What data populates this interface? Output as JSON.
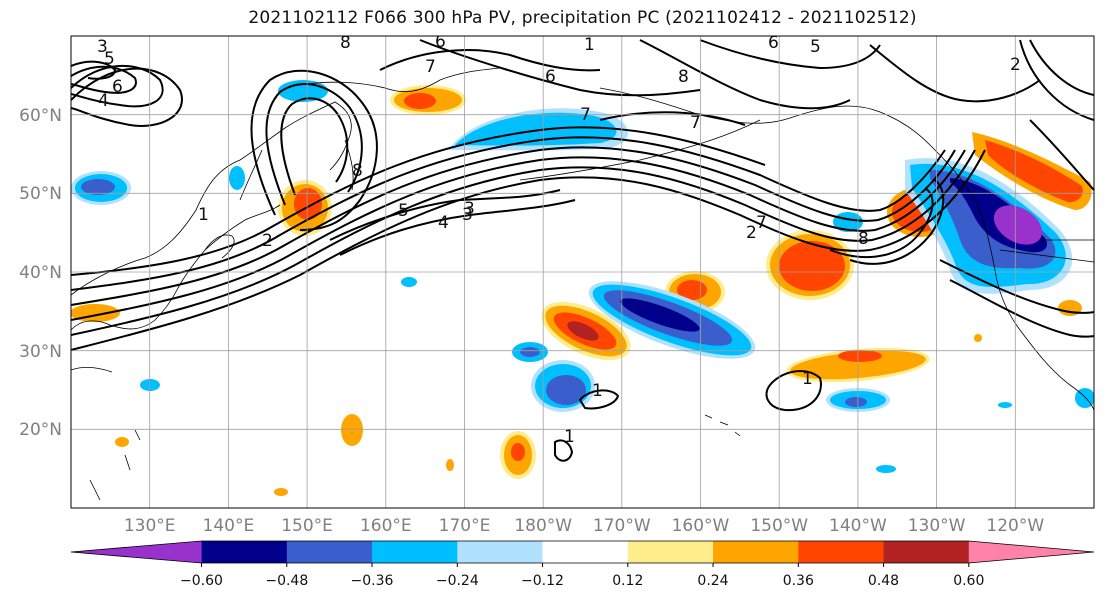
{
  "title": "2021102112 F066 300 hPa PV, precipitation PC (2021102412 - 2021102512)",
  "map": {
    "projection": "PlateCarree",
    "lon_range": [
      120,
      250
    ],
    "lat_range": [
      10,
      70
    ],
    "lat_ticks": [
      "20°N",
      "30°N",
      "40°N",
      "50°N",
      "60°N"
    ],
    "lon_ticks": [
      "130°E",
      "140°E",
      "150°E",
      "160°E",
      "170°E",
      "180°W",
      "170°W",
      "160°W",
      "150°W",
      "140°W",
      "130°W",
      "120°W"
    ],
    "gridlines": true,
    "contour_variable": "300 hPa PV",
    "fill_variable": "precipitation PC",
    "contour_labels": [
      "3",
      "5",
      "6",
      "4",
      "2",
      "1",
      "8",
      "6",
      "8",
      "7",
      "1",
      "6",
      "5",
      "3",
      "7",
      "8",
      "7",
      "5",
      "4",
      "3",
      "2",
      "7",
      "6",
      "8",
      "1",
      "1",
      "1",
      "2"
    ]
  },
  "colorbar": {
    "ticks": [
      "−0.60",
      "−0.48",
      "−0.36",
      "−0.24",
      "−0.12",
      "0.12",
      "0.24",
      "0.36",
      "0.48",
      "0.60"
    ],
    "colors": [
      "#9932cc",
      "#00008b",
      "#3a5fcd",
      "#00bfff",
      "#b0e2ff",
      "#ffffff",
      "#ffec8b",
      "#ffa500",
      "#ff4500",
      "#b22222",
      "#ff82ab"
    ],
    "extend": "both"
  }
}
